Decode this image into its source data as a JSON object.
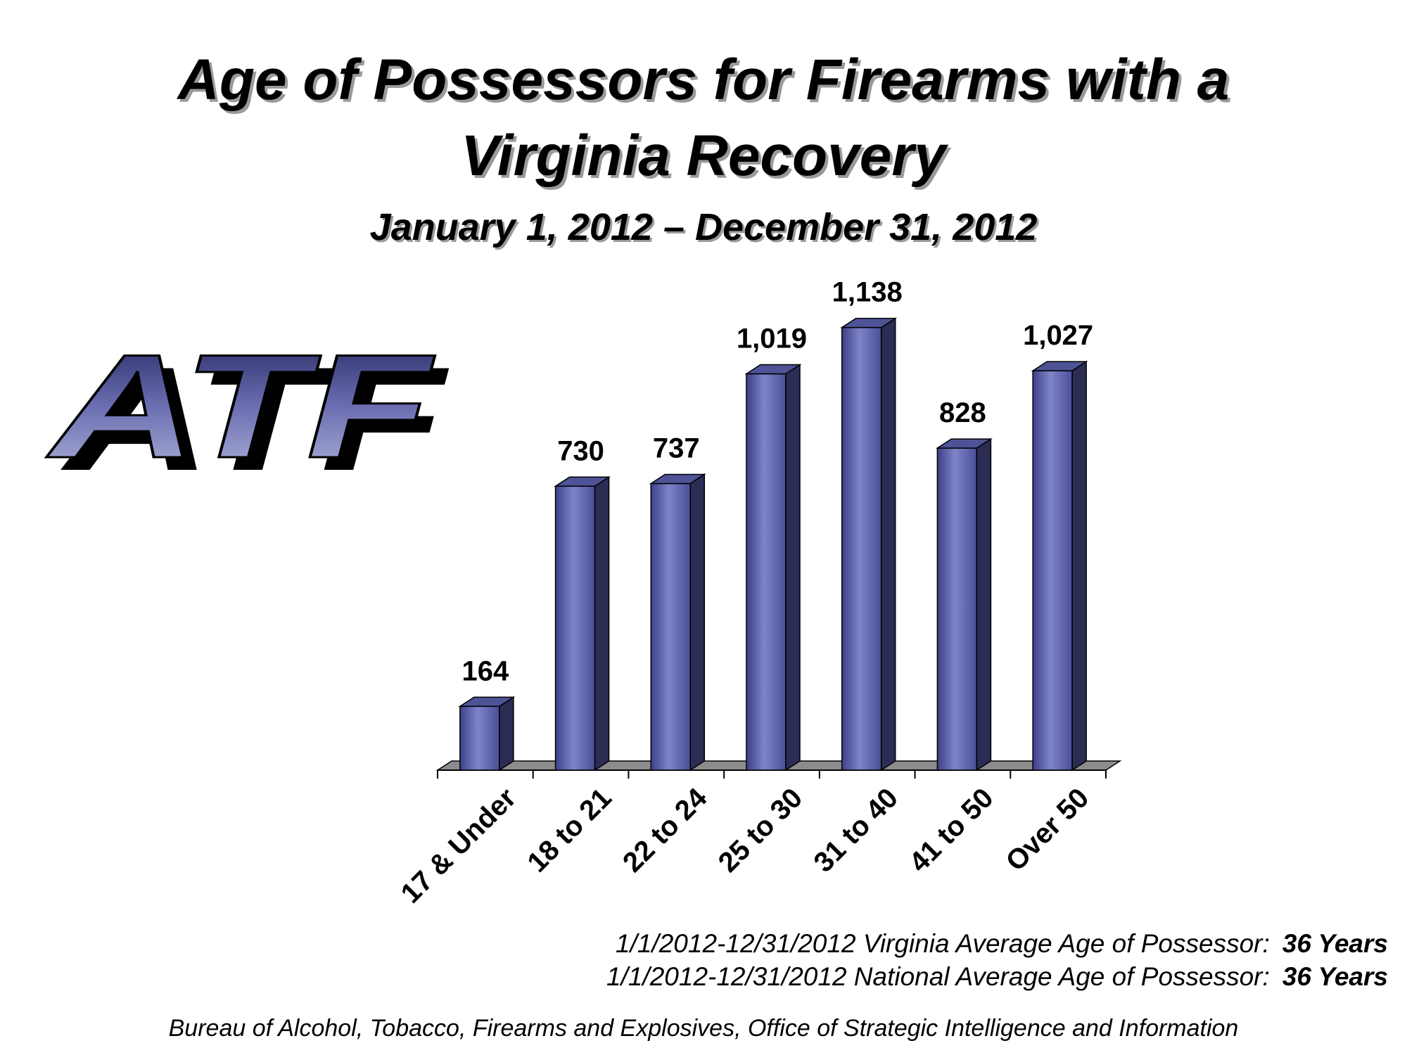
{
  "title_line1": "Age of Possessors for Firearms with a",
  "title_line2": "Virginia Recovery",
  "subtitle": "January 1, 2012 – December 31, 2012",
  "logo_text": "ATF",
  "colors": {
    "bar_front": "#6e72b8",
    "bar_top": "#4e5296",
    "bar_side": "#2b2d55",
    "floor": "#8c8c8c",
    "logo_fill": "#5a5e9e",
    "logo_shadow": "#000000"
  },
  "chart_data": {
    "type": "bar",
    "categories": [
      "17 & Under",
      "18 to 21",
      "22 to 24",
      "25 to 30",
      "31 to 40",
      "41 to 50",
      "Over 50"
    ],
    "values": [
      164,
      730,
      737,
      1019,
      1138,
      828,
      1027
    ],
    "data_labels": [
      "164",
      "730",
      "737",
      "1,019",
      "1,138",
      "828",
      "1,027"
    ],
    "ylim": [
      0,
      1200
    ],
    "grid": false,
    "legend": "none",
    "style": "3d-bar"
  },
  "notes": [
    {
      "label": "1/1/2012-12/31/2012 Virginia Average Age of Possessor:",
      "value": "36 Years"
    },
    {
      "label": "1/1/2012-12/31/2012 National Average Age of Possessor:",
      "value": "36 Years"
    }
  ],
  "footer": "Bureau of Alcohol, Tobacco, Firearms and Explosives, Office of Strategic Intelligence and Information"
}
